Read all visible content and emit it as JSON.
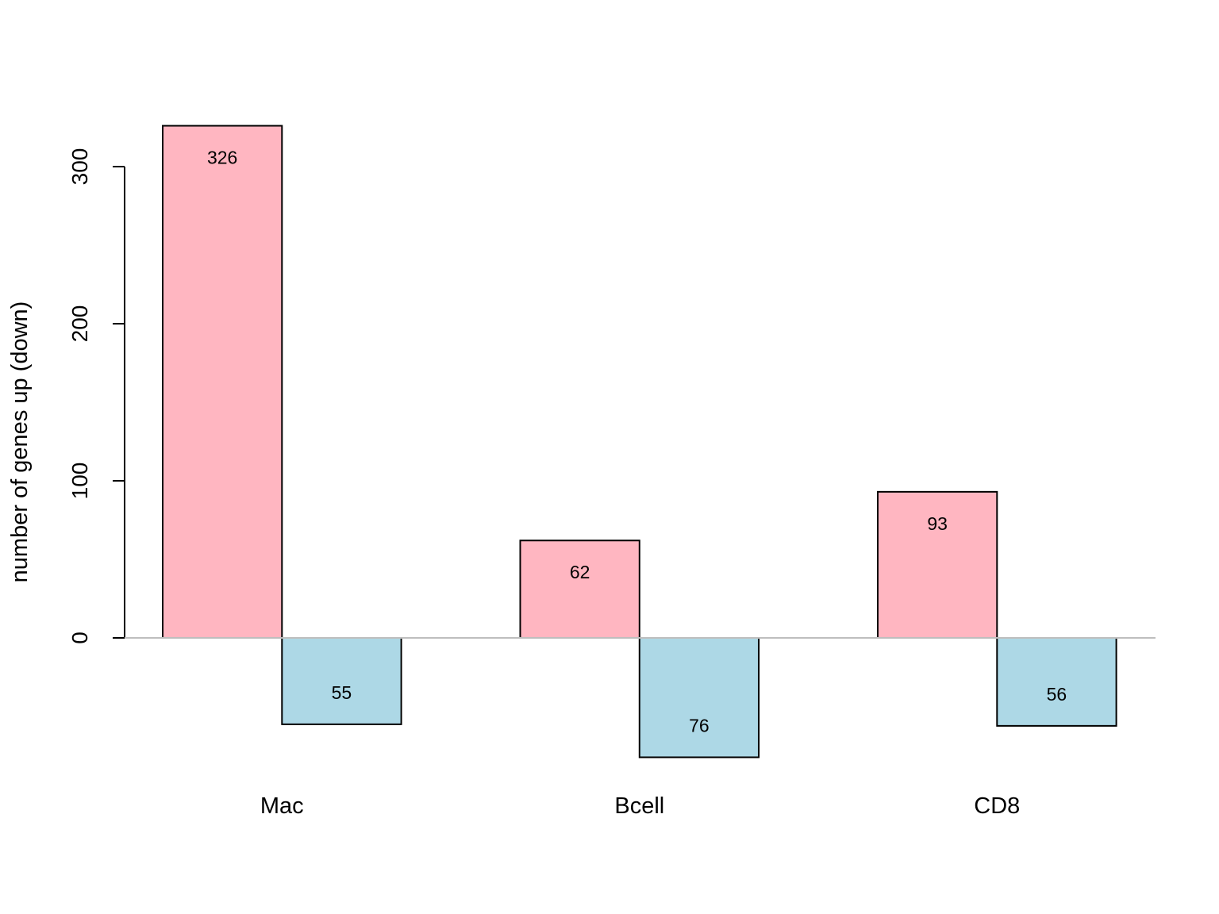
{
  "chart_data": {
    "type": "bar",
    "categories": [
      "Mac",
      "Bcell",
      "CD8"
    ],
    "series": [
      {
        "values": [
          326,
          62,
          93
        ]
      },
      {
        "values": [
          -55,
          -76,
          -56
        ]
      }
    ],
    "data_labels": [
      [
        "326",
        "62",
        "93"
      ],
      [
        "55",
        "76",
        "56"
      ]
    ],
    "title": "",
    "xlabel": "",
    "ylabel": "number of genes up (down)",
    "yticks": [
      0,
      100,
      200,
      300
    ],
    "ylim": [
      -76,
      326
    ],
    "grid": false,
    "legend": "none",
    "colors": {
      "up": "#ffb6c1",
      "down": "#add8e6",
      "zero_line": "#bebebe",
      "outline": "#000000"
    }
  }
}
